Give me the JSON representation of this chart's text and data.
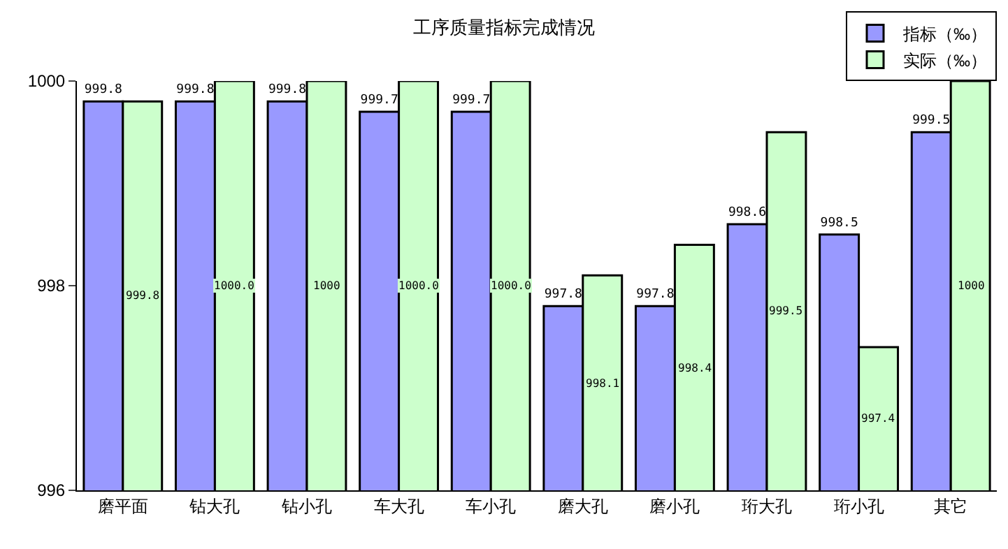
{
  "chart_data": {
    "type": "bar",
    "title": "工序质量指标完成情况",
    "categories": [
      "磨平面",
      "钻大孔",
      "钻小孔",
      "车大孔",
      "车小孔",
      "磨大孔",
      "磨小孔",
      "珩大孔",
      "珩小孔",
      "其它"
    ],
    "series": [
      {
        "name": "指标（‰）",
        "color": "#9999ff",
        "values": [
          999.8,
          999.8,
          999.8,
          999.7,
          999.7,
          997.8,
          997.8,
          998.6,
          998.5,
          999.5
        ],
        "value_labels": [
          "999.8",
          "999.8",
          "999.8",
          "999.7",
          "999.7",
          "997.8",
          "997.8",
          "998.6",
          "998.5",
          "999.5"
        ]
      },
      {
        "name": "实际（‰）",
        "color": "#ccffcc",
        "values": [
          999.8,
          1000.0,
          1000,
          1000.0,
          1000.0,
          998.1,
          998.4,
          999.5,
          997.4,
          1000
        ],
        "value_labels": [
          "999.8",
          "1000.0",
          "1000",
          "1000.0",
          "1000.0",
          "998.1",
          "998.4",
          "999.5",
          "997.4",
          "1000"
        ]
      }
    ],
    "ylim": [
      996,
      1000
    ],
    "yticks": [
      996,
      998,
      1000
    ],
    "grid": false,
    "legend": "top right"
  }
}
